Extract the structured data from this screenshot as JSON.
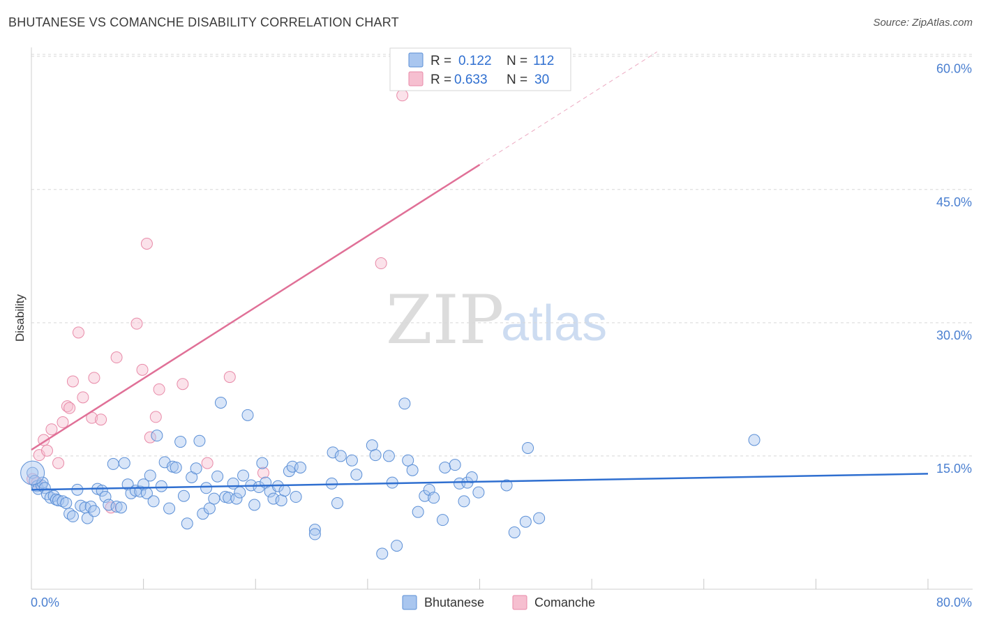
{
  "header": {
    "title": "BHUTANESE VS COMANCHE DISABILITY CORRELATION CHART",
    "source": "Source: ZipAtlas.com"
  },
  "watermark": {
    "zip": "ZIP",
    "atlas": "atlas"
  },
  "colors": {
    "blue_fill": "#a9c6ef",
    "blue_stroke": "#5b8fd6",
    "blue_line": "#2f6fd0",
    "pink_fill": "#f6bfd0",
    "pink_stroke": "#e88aa8",
    "pink_line": "#e07097",
    "grid": "#d8d8d8",
    "tick_text": "#4a7fd0"
  },
  "legend": {
    "rows": [
      {
        "r_label": "R = ",
        "r_value": "0.122",
        "n_label": "N = ",
        "n_value": "112"
      },
      {
        "r_label": "R = ",
        "r_value": "0.633",
        "n_label": "N = ",
        "n_value": "30"
      }
    ]
  },
  "chart_data": {
    "type": "scatter",
    "title": "BHUTANESE VS COMANCHE DISABILITY CORRELATION CHART",
    "xlabel": "",
    "ylabel": "Disability",
    "xlim": [
      0,
      80
    ],
    "ylim": [
      0,
      61
    ],
    "x_tick_labels": [
      "0.0%",
      "80.0%"
    ],
    "y_ticks": [
      15,
      30,
      45,
      60
    ],
    "y_tick_labels": [
      "15.0%",
      "30.0%",
      "45.0%",
      "60.0%"
    ],
    "legend_position": "bottom-center",
    "series": [
      {
        "name": "Bhutanese",
        "r": 0.122,
        "n": 112,
        "trend": {
          "x": [
            0,
            80
          ],
          "y": [
            11.2,
            13.0
          ],
          "solid_until": 80
        },
        "points": [
          [
            0.1,
            13.1
          ],
          [
            0.3,
            12.2
          ],
          [
            0.5,
            11.6
          ],
          [
            0.6,
            11.3
          ],
          [
            0.9,
            11.7
          ],
          [
            1.0,
            12.0
          ],
          [
            1.2,
            11.4
          ],
          [
            1.4,
            10.7
          ],
          [
            1.7,
            10.3
          ],
          [
            2.0,
            10.5
          ],
          [
            2.2,
            10.1
          ],
          [
            2.4,
            10.0
          ],
          [
            2.8,
            9.9
          ],
          [
            3.1,
            9.7
          ],
          [
            3.4,
            8.5
          ],
          [
            3.7,
            8.2
          ],
          [
            4.1,
            11.2
          ],
          [
            4.4,
            9.4
          ],
          [
            4.8,
            9.2
          ],
          [
            5.0,
            8.0
          ],
          [
            5.3,
            9.3
          ],
          [
            5.6,
            8.8
          ],
          [
            5.9,
            11.3
          ],
          [
            6.3,
            11.1
          ],
          [
            6.6,
            10.4
          ],
          [
            6.9,
            9.5
          ],
          [
            7.3,
            14.1
          ],
          [
            7.6,
            9.3
          ],
          [
            8.0,
            9.2
          ],
          [
            8.3,
            14.2
          ],
          [
            8.6,
            11.8
          ],
          [
            8.9,
            10.8
          ],
          [
            9.3,
            11.1
          ],
          [
            9.7,
            11.0
          ],
          [
            10.0,
            11.8
          ],
          [
            10.3,
            10.8
          ],
          [
            10.6,
            12.8
          ],
          [
            10.9,
            9.9
          ],
          [
            11.2,
            17.3
          ],
          [
            11.6,
            11.6
          ],
          [
            11.9,
            14.3
          ],
          [
            12.3,
            9.1
          ],
          [
            12.6,
            13.8
          ],
          [
            12.9,
            13.7
          ],
          [
            13.3,
            16.6
          ],
          [
            13.6,
            10.5
          ],
          [
            13.9,
            7.4
          ],
          [
            14.3,
            12.6
          ],
          [
            14.7,
            13.6
          ],
          [
            15.0,
            16.7
          ],
          [
            15.3,
            8.5
          ],
          [
            15.6,
            11.4
          ],
          [
            15.9,
            9.1
          ],
          [
            16.3,
            10.2
          ],
          [
            16.6,
            12.7
          ],
          [
            16.9,
            21.0
          ],
          [
            17.3,
            10.4
          ],
          [
            17.6,
            10.3
          ],
          [
            18.0,
            11.9
          ],
          [
            18.3,
            10.2
          ],
          [
            18.6,
            10.9
          ],
          [
            18.9,
            12.8
          ],
          [
            19.3,
            19.6
          ],
          [
            19.6,
            11.7
          ],
          [
            19.9,
            9.5
          ],
          [
            20.3,
            11.5
          ],
          [
            20.6,
            14.2
          ],
          [
            20.9,
            12.0
          ],
          [
            21.3,
            11.0
          ],
          [
            21.6,
            10.2
          ],
          [
            22.0,
            11.6
          ],
          [
            22.3,
            10.0
          ],
          [
            22.6,
            11.1
          ],
          [
            23.0,
            13.3
          ],
          [
            23.3,
            13.8
          ],
          [
            23.6,
            10.4
          ],
          [
            24.0,
            13.7
          ],
          [
            25.3,
            6.7
          ],
          [
            25.3,
            6.2
          ],
          [
            26.8,
            11.9
          ],
          [
            26.9,
            15.4
          ],
          [
            27.3,
            9.7
          ],
          [
            27.6,
            15.0
          ],
          [
            28.6,
            14.5
          ],
          [
            29.0,
            12.9
          ],
          [
            30.4,
            16.2
          ],
          [
            30.7,
            15.1
          ],
          [
            31.3,
            4.0
          ],
          [
            31.9,
            15.0
          ],
          [
            32.2,
            12.0
          ],
          [
            32.6,
            4.9
          ],
          [
            33.3,
            20.9
          ],
          [
            33.6,
            14.5
          ],
          [
            34.0,
            13.4
          ],
          [
            34.5,
            8.7
          ],
          [
            35.1,
            10.5
          ],
          [
            35.5,
            11.2
          ],
          [
            35.9,
            10.3
          ],
          [
            36.7,
            7.8
          ],
          [
            36.9,
            13.7
          ],
          [
            37.8,
            14.0
          ],
          [
            38.2,
            11.9
          ],
          [
            38.6,
            9.9
          ],
          [
            38.9,
            12.0
          ],
          [
            39.3,
            12.6
          ],
          [
            39.9,
            10.9
          ],
          [
            42.4,
            11.7
          ],
          [
            43.1,
            6.4
          ],
          [
            44.1,
            7.6
          ],
          [
            44.3,
            15.9
          ],
          [
            45.3,
            8.0
          ],
          [
            64.5,
            16.8
          ]
        ]
      },
      {
        "name": "Comanche",
        "r": 0.633,
        "n": 30,
        "trend": {
          "x": [
            0,
            80
          ],
          "y": [
            15.7,
            79.9
          ],
          "solid_until": 40
        },
        "points": [
          [
            0.1,
            12.4
          ],
          [
            0.5,
            12.0
          ],
          [
            0.7,
            15.1
          ],
          [
            1.1,
            16.8
          ],
          [
            1.4,
            15.6
          ],
          [
            1.8,
            18.0
          ],
          [
            2.4,
            14.2
          ],
          [
            2.8,
            18.8
          ],
          [
            3.2,
            20.6
          ],
          [
            3.4,
            20.4
          ],
          [
            3.7,
            23.4
          ],
          [
            4.2,
            28.9
          ],
          [
            4.6,
            21.6
          ],
          [
            5.4,
            19.3
          ],
          [
            5.6,
            23.8
          ],
          [
            6.2,
            19.1
          ],
          [
            7.1,
            9.2
          ],
          [
            7.6,
            26.1
          ],
          [
            9.4,
            29.9
          ],
          [
            9.9,
            24.7
          ],
          [
            10.3,
            38.9
          ],
          [
            10.6,
            17.1
          ],
          [
            11.1,
            19.4
          ],
          [
            11.4,
            22.5
          ],
          [
            13.5,
            23.1
          ],
          [
            15.7,
            14.2
          ],
          [
            17.7,
            23.9
          ],
          [
            20.7,
            13.1
          ],
          [
            31.2,
            36.7
          ],
          [
            33.1,
            55.6
          ]
        ]
      }
    ]
  },
  "bottom_legend": {
    "items": [
      "Bhutanese",
      "Comanche"
    ]
  }
}
